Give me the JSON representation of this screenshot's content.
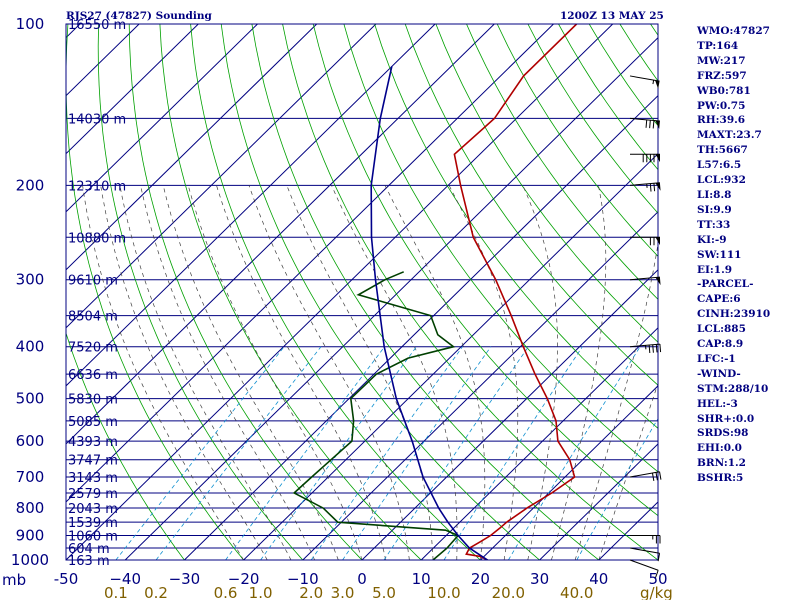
{
  "chart_data": {
    "type": "line",
    "title_left": "RJS27 (47827) Sounding",
    "title_right": "1200Z 13 MAY 25",
    "pressure_levels": [
      100,
      200,
      300,
      400,
      500,
      600,
      700,
      800,
      900,
      1000
    ],
    "pressure_labels": [
      "100",
      "200",
      "300",
      "400",
      "500",
      "600",
      "700",
      "800",
      "900",
      "1000"
    ],
    "x_axis_unit": "mb",
    "x_ticks": [
      -50,
      -40,
      -30,
      -20,
      -10,
      0,
      10,
      20,
      30,
      40,
      50
    ],
    "x_tick_labels": [
      "-50",
      "−40",
      "−30",
      "−20",
      "−10",
      "0",
      "10",
      "20",
      "30",
      "40",
      "50"
    ],
    "mixing_ratio_ticks": [
      "0.1",
      "0.2",
      "0.6",
      "1.0",
      "2.0",
      "3.0",
      "5.0",
      "10.0",
      "20.0",
      "40.0"
    ],
    "mixing_ratio_values": [
      0.1,
      0.2,
      0.6,
      1.0,
      2.0,
      3.0,
      5.0,
      10.0,
      20.0,
      40.0
    ],
    "mixing_ratio_unit": "g/kg",
    "height_labels": [
      {
        "p": 100,
        "label": "16550 m"
      },
      {
        "p": 150,
        "label": "14030 m"
      },
      {
        "p": 200,
        "label": "12310 m"
      },
      {
        "p": 250,
        "label": "10880 m"
      },
      {
        "p": 300,
        "label": "9610 m"
      },
      {
        "p": 350,
        "label": "8504 m"
      },
      {
        "p": 400,
        "label": "7520 m"
      },
      {
        "p": 450,
        "label": "6636 m"
      },
      {
        "p": 500,
        "label": "5830 m"
      },
      {
        "p": 550,
        "label": "5085 m"
      },
      {
        "p": 600,
        "label": "4393 m"
      },
      {
        "p": 650,
        "label": "3747 m"
      },
      {
        "p": 700,
        "label": "3143 m"
      },
      {
        "p": 750,
        "label": "2579 m"
      },
      {
        "p": 800,
        "label": "2043 m"
      },
      {
        "p": 850,
        "label": "1539 m"
      },
      {
        "p": 900,
        "label": "1060 m"
      },
      {
        "p": 950,
        "label": "604 m"
      },
      {
        "p": 1000,
        "label": "163 m"
      }
    ],
    "series": [
      {
        "name": "Temperature",
        "color": "#b00000",
        "points": [
          [
            1000,
            21.2
          ],
          [
            985,
            19.4
          ],
          [
            975,
            16.6
          ],
          [
            950,
            16.1
          ],
          [
            925,
            16.8
          ],
          [
            900,
            17.5
          ],
          [
            870,
            17.8
          ],
          [
            850,
            17.9
          ],
          [
            800,
            18.9
          ],
          [
            750,
            20.5
          ],
          [
            700,
            21.6
          ],
          [
            650,
            17.8
          ],
          [
            600,
            12.6
          ],
          [
            550,
            8.8
          ],
          [
            500,
            3.5
          ],
          [
            450,
            -2.8
          ],
          [
            400,
            -9.5
          ],
          [
            350,
            -16.9
          ],
          [
            300,
            -25.7
          ],
          [
            250,
            -36.8
          ],
          [
            200,
            -47.9
          ],
          [
            175,
            -54.3
          ],
          [
            150,
            -53.7
          ],
          [
            125,
            -56.1
          ],
          [
            100,
            -56.1
          ]
        ]
      },
      {
        "name": "Dewpoint",
        "color": "#004000",
        "points": [
          [
            1000,
            12.0
          ],
          [
            950,
            12.3
          ],
          [
            900,
            12.0
          ],
          [
            880,
            9.0
          ],
          [
            850,
            -10.6
          ],
          [
            800,
            -15.5
          ],
          [
            750,
            -23.0
          ],
          [
            700,
            -22.8
          ],
          [
            650,
            -22.5
          ],
          [
            600,
            -22.2
          ],
          [
            550,
            -25.4
          ],
          [
            500,
            -29.7
          ],
          [
            450,
            -29.6
          ],
          [
            420,
            -27.0
          ],
          [
            400,
            -21.3
          ],
          [
            380,
            -26.0
          ],
          [
            350,
            -30.5
          ],
          [
            320,
            -46.3
          ],
          [
            300,
            -44.4
          ],
          [
            290,
            -42.6
          ]
        ]
      },
      {
        "name": "Parcel",
        "color": "#00008b",
        "points": [
          [
            1000,
            21.2
          ],
          [
            950,
            16.1
          ],
          [
            900,
            12.0
          ],
          [
            850,
            8.0
          ],
          [
            800,
            4.0
          ],
          [
            700,
            -4.0
          ],
          [
            600,
            -12.0
          ],
          [
            500,
            -22.0
          ],
          [
            400,
            -33.0
          ],
          [
            300,
            -46.0
          ],
          [
            250,
            -54.0
          ],
          [
            200,
            -63.0
          ],
          [
            150,
            -73.0
          ],
          [
            120,
            -80.0
          ]
        ]
      }
    ],
    "winds": [
      {
        "p": 1000,
        "dir": 290,
        "spd": 10
      },
      {
        "p": 950,
        "dir": 280,
        "spd": 10
      },
      {
        "p": 900,
        "dir": 270,
        "spd": 25
      },
      {
        "p": 700,
        "dir": 260,
        "spd": 30
      },
      {
        "p": 400,
        "dir": 265,
        "spd": 45
      },
      {
        "p": 300,
        "dir": 265,
        "spd": 50
      },
      {
        "p": 250,
        "dir": 270,
        "spd": 70
      },
      {
        "p": 200,
        "dir": 265,
        "spd": 75
      },
      {
        "p": 175,
        "dir": 270,
        "spd": 90
      },
      {
        "p": 150,
        "dir": 275,
        "spd": 80
      },
      {
        "p": 125,
        "dir": 280,
        "spd": 55
      }
    ],
    "stats": [
      "WMO:47827",
      "TP:164",
      "MW:217",
      "FRZ:597",
      "WB0:781",
      "PW:0.75",
      "RH:39.6",
      "MAXT:23.7",
      "TH:5667",
      "L57:6.5",
      "LCL:932",
      "LI:8.8",
      "SI:9.9",
      "TT:33",
      "KI:-9",
      "SW:111",
      "EI:1.9",
      "-PARCEL-",
      "CAPE:6",
      "CINH:23910",
      "LCL:885",
      "CAP:8.9",
      "LFC:-1",
      "-WIND-",
      "STM:288/10",
      "HEL:-3",
      "SHR+:0.0",
      "SRDS:98",
      "EHI:0.0",
      "BRN:1.2",
      "BSHR:5"
    ],
    "colors": {
      "isobar": "#000080",
      "isotherm": "#000080",
      "dry_adiabat": "#00a000",
      "moist_adiabat": "#404040",
      "mixing_ratio": "#1090d0",
      "label_text": "#000080",
      "tick_labels": "#806000"
    }
  }
}
